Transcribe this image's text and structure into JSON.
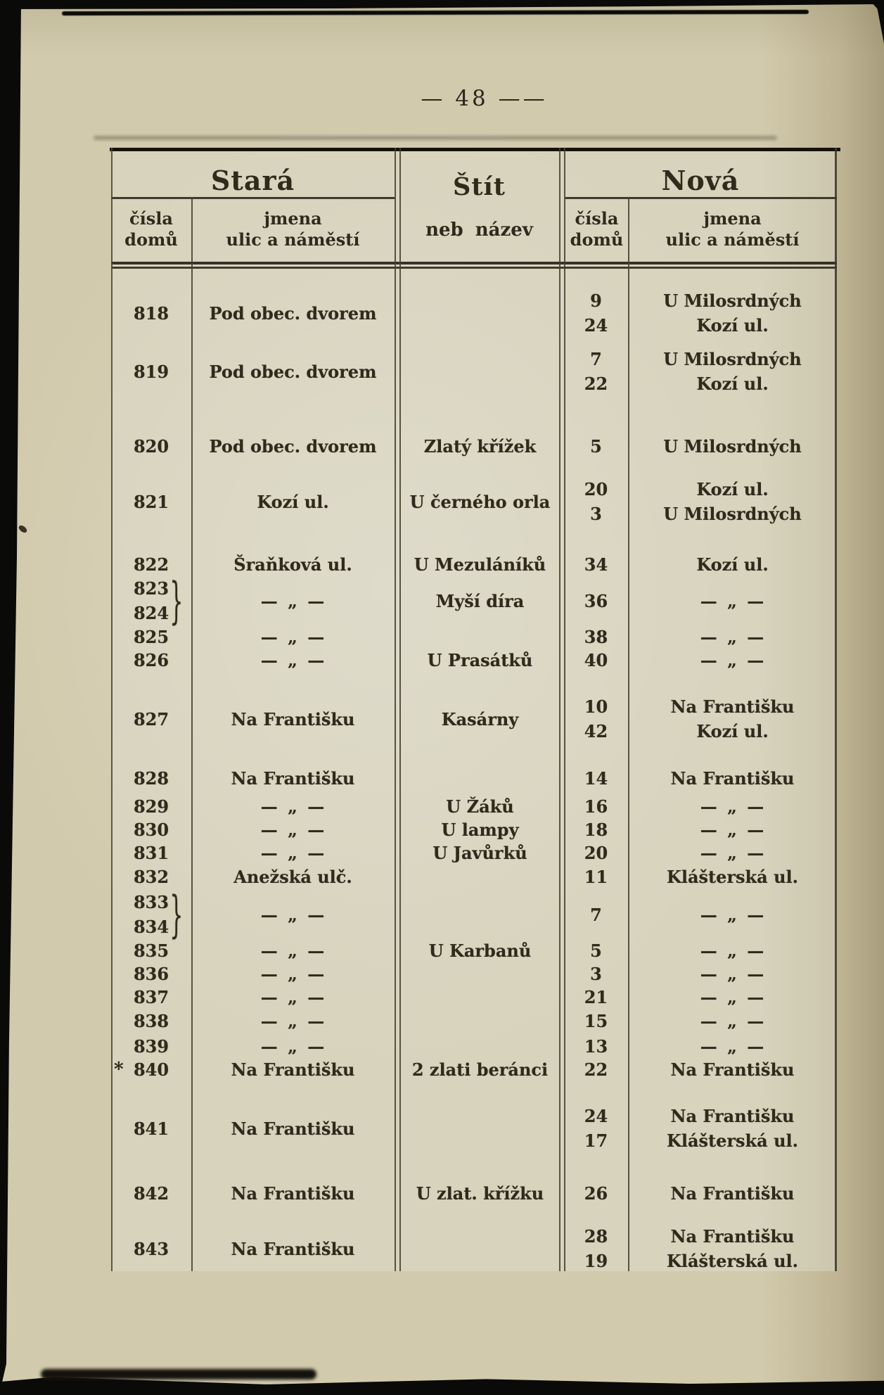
{
  "page": {
    "number": "48",
    "number_display": "— 48 ——"
  },
  "table": {
    "header": {
      "stara": "Stará",
      "stit_line1": "Štít",
      "stit_line2": "neb název",
      "nova": "Nová",
      "cisla_line1": "čísla",
      "cisla_line2": "domů",
      "jmena_line1": "jmena",
      "jmena_line2": "ulic a náměstí"
    },
    "marks": {
      "ditto": "— „ —",
      "brace": "}",
      "star": "*"
    },
    "rows": [
      {
        "old_numbers": [
          "818"
        ],
        "old_name": "Pod obec. dvorem",
        "shield": "",
        "new_numbers": [
          "9",
          "24"
        ],
        "new_names": [
          "U Milosrdných",
          "Kozí ul."
        ]
      },
      {
        "old_numbers": [
          "819"
        ],
        "old_name": "Pod obec. dvorem",
        "shield": "",
        "new_numbers": [
          "7",
          "22"
        ],
        "new_names": [
          "U Milosrdných",
          "Kozí ul."
        ]
      },
      {
        "old_numbers": [
          "820"
        ],
        "old_name": "Pod obec. dvorem",
        "shield": "Zlatý křížek",
        "new_numbers": [
          "5"
        ],
        "new_names": [
          "U Milosrdných"
        ]
      },
      {
        "old_numbers": [
          "821"
        ],
        "old_name": "Kozí ul.",
        "shield": "U černého orla",
        "new_numbers": [
          "20",
          "3"
        ],
        "new_names": [
          "Kozí ul.",
          "U Milosrdných"
        ]
      },
      {
        "old_numbers": [
          "822"
        ],
        "old_name": "Šraňková ul.",
        "shield": "U Mezuláníků",
        "new_numbers": [
          "34"
        ],
        "new_names": [
          "Kozí ul."
        ]
      },
      {
        "old_numbers": [
          "823",
          "824"
        ],
        "brace": true,
        "old_name": "— „ —",
        "shield": "Myší díra",
        "new_numbers": [
          "36"
        ],
        "new_names": [
          "— „ —"
        ]
      },
      {
        "old_numbers": [
          "825"
        ],
        "old_name": "— „ —",
        "shield": "",
        "new_numbers": [
          "38"
        ],
        "new_names": [
          "— „ —"
        ]
      },
      {
        "old_numbers": [
          "826"
        ],
        "old_name": "— „ —",
        "shield": "U Prasátků",
        "new_numbers": [
          "40"
        ],
        "new_names": [
          "— „ —"
        ]
      },
      {
        "old_numbers": [
          "827"
        ],
        "old_name": "Na Františku",
        "shield": "Kasárny",
        "new_numbers": [
          "10",
          "42"
        ],
        "new_names": [
          "Na Františku",
          "Kozí ul."
        ]
      },
      {
        "old_numbers": [
          "828"
        ],
        "old_name": "Na Františku",
        "shield": "",
        "new_numbers": [
          "14"
        ],
        "new_names": [
          "Na Františku"
        ]
      },
      {
        "old_numbers": [
          "829"
        ],
        "old_name": "— „ —",
        "shield": "U Žáků",
        "new_numbers": [
          "16"
        ],
        "new_names": [
          "— „ —"
        ]
      },
      {
        "old_numbers": [
          "830"
        ],
        "old_name": "— „ —",
        "shield": "U lampy",
        "new_numbers": [
          "18"
        ],
        "new_names": [
          "— „ —"
        ]
      },
      {
        "old_numbers": [
          "831"
        ],
        "old_name": "— „ —",
        "shield": "U Javůrků",
        "new_numbers": [
          "20"
        ],
        "new_names": [
          "— „ —"
        ]
      },
      {
        "old_numbers": [
          "832"
        ],
        "old_name": "Anežská ulč.",
        "shield": "",
        "new_numbers": [
          "11"
        ],
        "new_names": [
          "Klášterská ul."
        ]
      },
      {
        "old_numbers": [
          "833",
          "834"
        ],
        "brace": true,
        "old_name": "— „ —",
        "shield": "",
        "new_numbers": [
          "7"
        ],
        "new_names": [
          "— „ —"
        ]
      },
      {
        "old_numbers": [
          "835"
        ],
        "old_name": "— „ —",
        "shield": "U Karbanů",
        "new_numbers": [
          "5"
        ],
        "new_names": [
          "— „ —"
        ]
      },
      {
        "old_numbers": [
          "836"
        ],
        "old_name": "— „ —",
        "shield": "",
        "new_numbers": [
          "3"
        ],
        "new_names": [
          "— „ —"
        ]
      },
      {
        "old_numbers": [
          "837"
        ],
        "old_name": "— „ —",
        "shield": "",
        "new_numbers": [
          "21"
        ],
        "new_names": [
          "— „ —"
        ]
      },
      {
        "old_numbers": [
          "838"
        ],
        "old_name": "— „ —",
        "shield": "",
        "new_numbers": [
          "15"
        ],
        "new_names": [
          "— „ —"
        ]
      },
      {
        "old_numbers": [
          "839"
        ],
        "old_name": "— „ —",
        "shield": "",
        "new_numbers": [
          "13"
        ],
        "new_names": [
          "— „ —"
        ]
      },
      {
        "old_numbers": [
          "840"
        ],
        "star": true,
        "old_name": "Na Františku",
        "shield": "2 zlati beránci",
        "new_numbers": [
          "22"
        ],
        "new_names": [
          "Na Františku"
        ]
      },
      {
        "old_numbers": [
          "841"
        ],
        "old_name": "Na Františku",
        "shield": "",
        "new_numbers": [
          "24",
          "17"
        ],
        "new_names": [
          "Na Františku",
          "Klášterská ul."
        ]
      },
      {
        "old_numbers": [
          "842"
        ],
        "old_name": "Na Františku",
        "shield": "U zlat. křížku",
        "new_numbers": [
          "26"
        ],
        "new_names": [
          "Na Františku"
        ]
      },
      {
        "old_numbers": [
          "843"
        ],
        "old_name": "Na Františku",
        "shield": "",
        "new_numbers": [
          "28",
          "19"
        ],
        "new_names": [
          "Na Františku",
          "Klášterská ul."
        ]
      }
    ]
  }
}
